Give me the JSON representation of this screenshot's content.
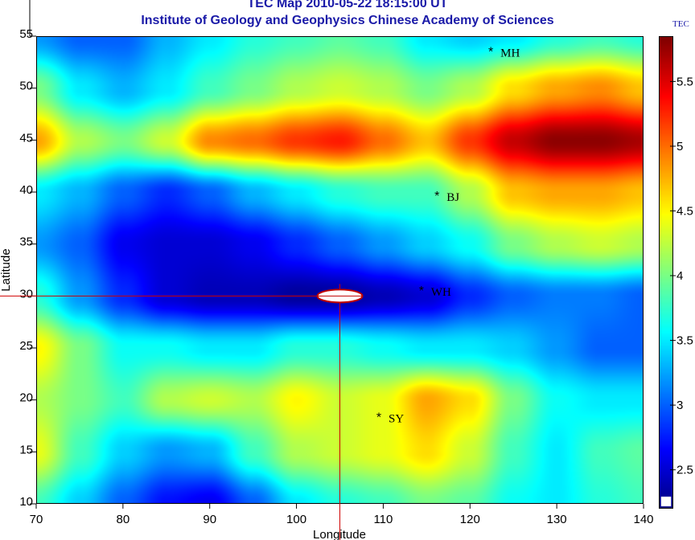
{
  "title": "TEC Map 2010-05-22 18:15:00 UT",
  "subtitle": "Institute of Geology and Geophysics Chinese Academy of Sciences",
  "colorbar": {
    "label": "TEC",
    "range": [
      2.2,
      5.85
    ],
    "ticks": [
      "2.5",
      "3",
      "3.5",
      "4",
      "4.5",
      "5",
      "5.5"
    ],
    "colormap": "jet"
  },
  "chart_data": {
    "type": "heatmap",
    "xlabel": "Longitude",
    "ylabel": "Latitude",
    "xlim": [
      70,
      140
    ],
    "ylim": [
      10,
      55
    ],
    "xticks": [
      "70",
      "80",
      "90",
      "100",
      "110",
      "120",
      "130",
      "140"
    ],
    "yticks": [
      "10",
      "15",
      "20",
      "25",
      "30",
      "35",
      "40",
      "45",
      "50",
      "55"
    ],
    "grid_lon": [
      70,
      75,
      80,
      85,
      90,
      95,
      100,
      105,
      110,
      115,
      120,
      125,
      130,
      135,
      140
    ],
    "grid_lat": [
      55,
      50,
      45,
      40,
      35,
      30,
      25,
      20,
      15,
      10
    ],
    "values": [
      [
        3.2,
        3.0,
        3.0,
        3.3,
        3.5,
        3.7,
        3.8,
        3.9,
        3.8,
        3.5,
        3.4,
        3.5,
        3.7,
        3.8,
        3.7
      ],
      [
        4.0,
        3.5,
        3.3,
        3.5,
        3.8,
        4.0,
        4.2,
        4.3,
        4.2,
        4.0,
        4.2,
        4.6,
        4.8,
        4.9,
        4.7
      ],
      [
        4.8,
        4.2,
        4.0,
        4.3,
        4.9,
        5.0,
        5.2,
        5.3,
        5.0,
        4.7,
        5.2,
        5.6,
        5.8,
        5.8,
        5.7
      ],
      [
        3.5,
        3.3,
        3.0,
        2.8,
        3.0,
        3.3,
        3.5,
        3.7,
        3.8,
        3.8,
        4.2,
        4.7,
        4.8,
        4.8,
        4.7
      ],
      [
        3.2,
        3.0,
        2.6,
        2.5,
        2.5,
        2.6,
        2.8,
        3.0,
        3.2,
        3.4,
        3.6,
        4.0,
        4.2,
        4.3,
        4.2
      ],
      [
        3.7,
        3.2,
        2.8,
        2.5,
        2.4,
        2.4,
        2.3,
        2.3,
        2.4,
        2.5,
        2.8,
        3.0,
        3.1,
        3.1,
        3.0
      ],
      [
        4.5,
        4.0,
        3.6,
        3.6,
        3.5,
        3.5,
        3.7,
        3.7,
        3.6,
        3.5,
        3.5,
        3.4,
        3.2,
        3.0,
        3.0
      ],
      [
        4.2,
        4.0,
        3.8,
        4.2,
        4.3,
        4.2,
        4.5,
        4.3,
        4.4,
        4.8,
        4.6,
        4.0,
        3.6,
        3.5,
        3.5
      ],
      [
        4.4,
        3.8,
        3.4,
        3.2,
        3.3,
        3.8,
        4.2,
        4.3,
        4.4,
        4.6,
        4.3,
        3.8,
        3.5,
        3.8,
        3.9
      ],
      [
        3.8,
        3.4,
        3.0,
        2.7,
        2.6,
        3.0,
        3.5,
        3.7,
        3.8,
        4.0,
        3.9,
        3.6,
        3.5,
        3.7,
        3.8
      ]
    ],
    "stations": [
      {
        "name": "MH",
        "lon": 122.4,
        "lat": 53.5
      },
      {
        "name": "BJ",
        "lon": 116.2,
        "lat": 39.6
      },
      {
        "name": "WH",
        "lon": 114.4,
        "lat": 30.5
      },
      {
        "name": "SY",
        "lon": 109.5,
        "lat": 18.3
      }
    ],
    "crosshair": {
      "lon": 105,
      "lat": 30
    }
  }
}
